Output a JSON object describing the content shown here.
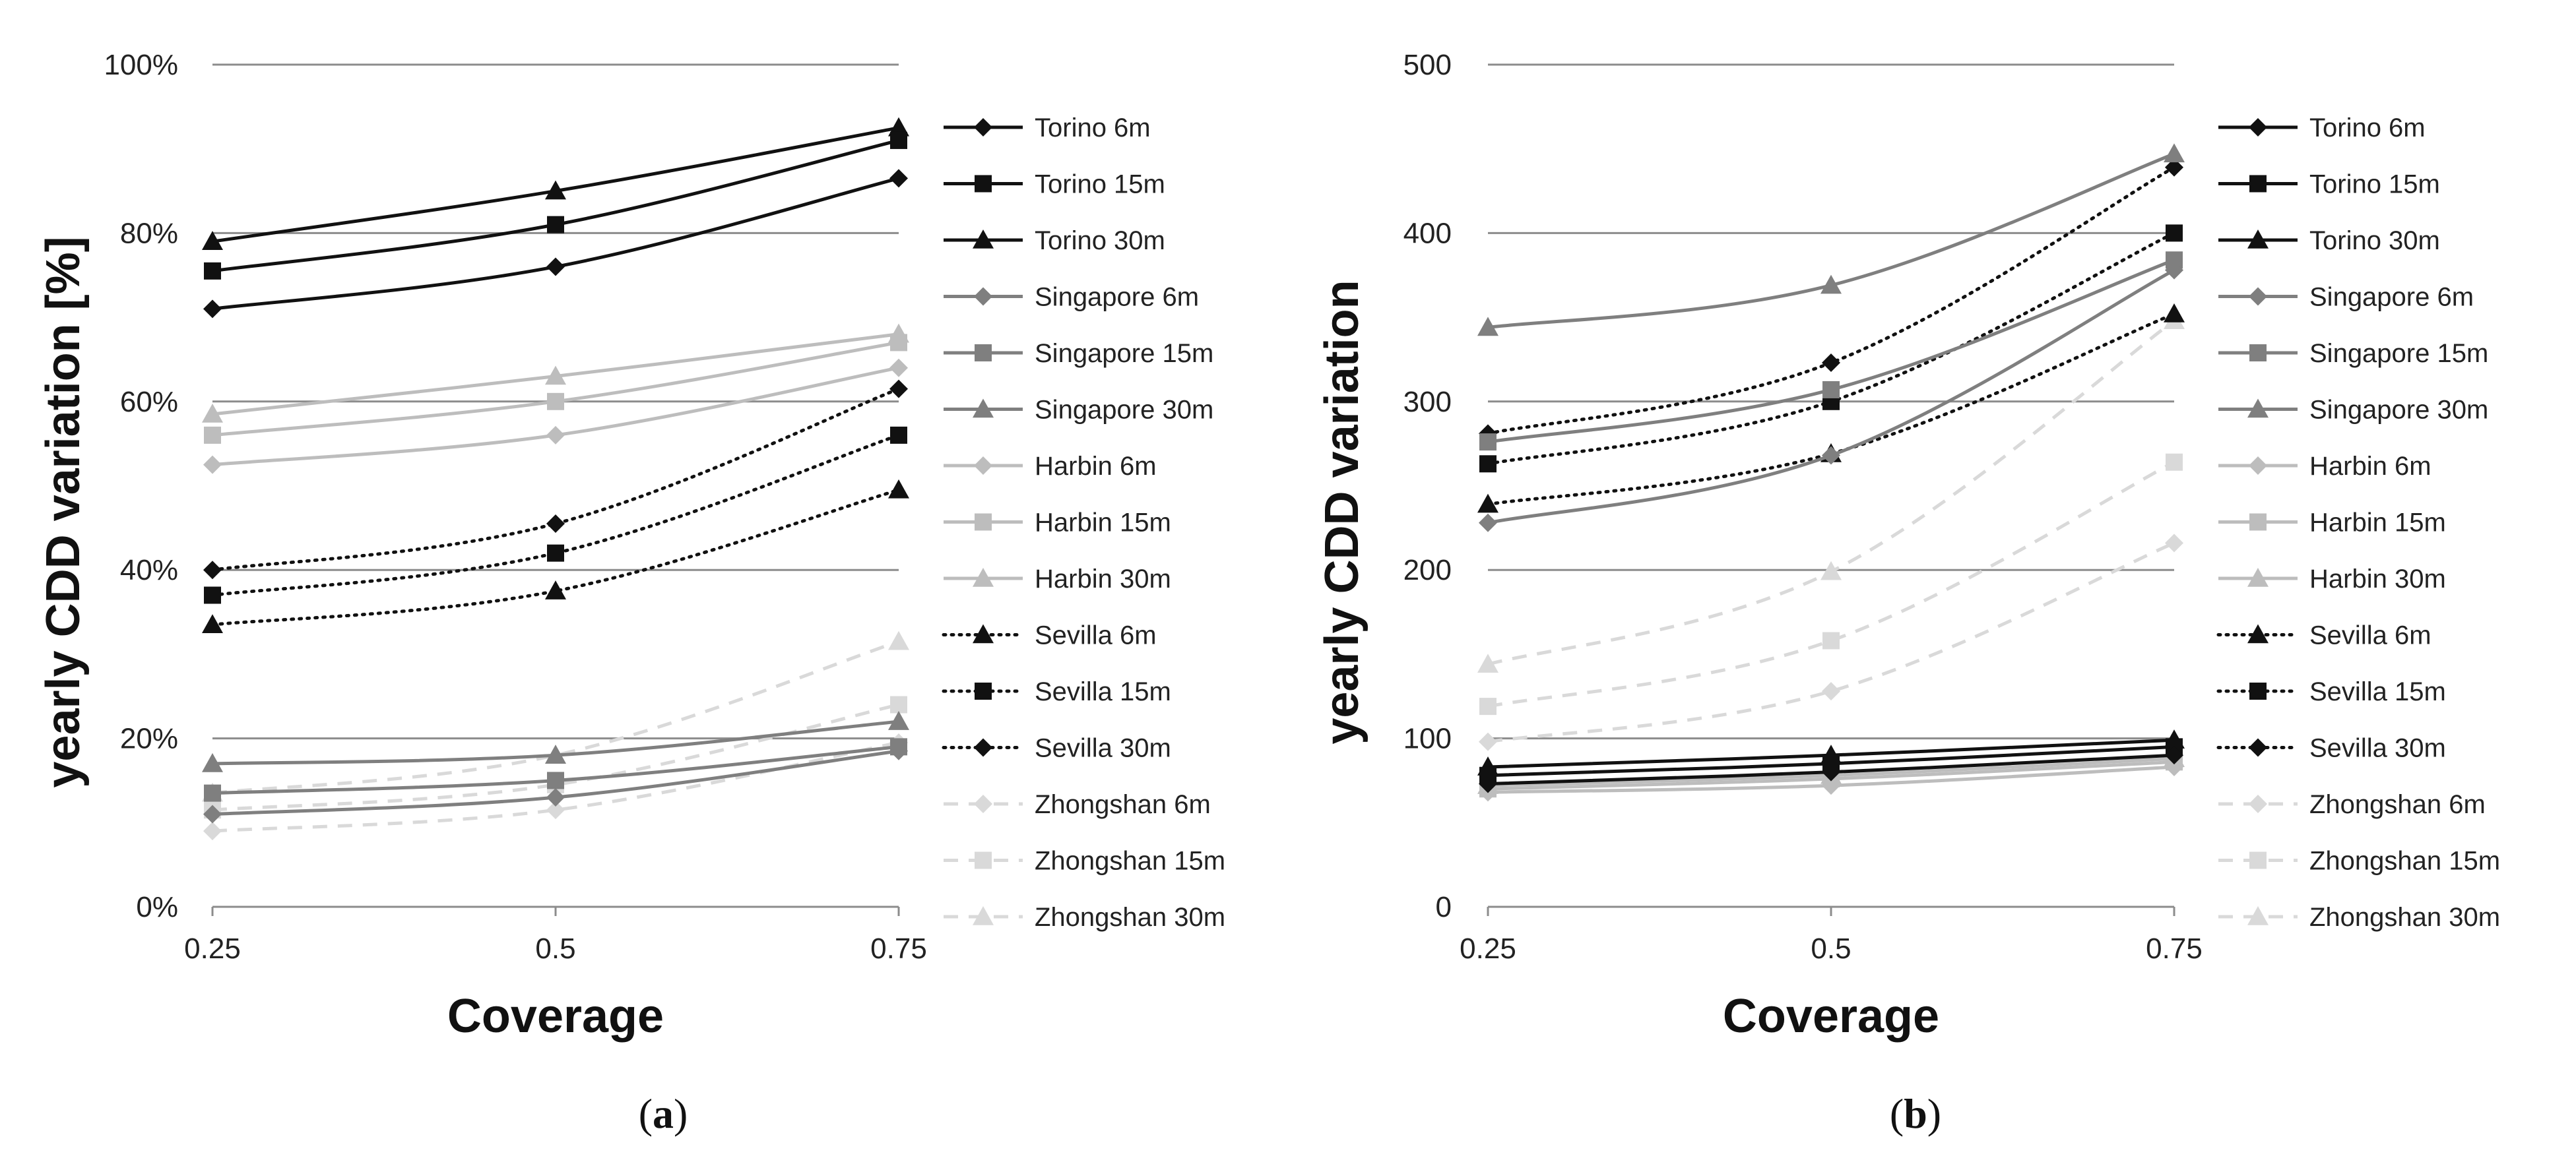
{
  "figure": {
    "caption_a": "a",
    "caption_b": "b"
  },
  "chart_data": [
    {
      "id": "a",
      "type": "line",
      "title": "",
      "xlabel": "Coverage",
      "ylabel": "yearly CDD variation [%]",
      "x": [
        0.25,
        0.5,
        0.75
      ],
      "x_tick_labels": [
        "0.25",
        "0.5",
        "0.75"
      ],
      "ylim": [
        0,
        100
      ],
      "y_ticks": [
        0,
        20,
        40,
        60,
        80,
        100
      ],
      "y_tick_labels": [
        "0%",
        "20%",
        "40%",
        "60%",
        "80%",
        "100%"
      ],
      "grid": true,
      "legend_position": "right",
      "series": [
        {
          "name": "Torino 6m",
          "values": [
            71,
            76,
            86.5
          ],
          "color": "#111111",
          "dash": "solid",
          "marker": "diamond"
        },
        {
          "name": "Torino 15m",
          "values": [
            75.5,
            81,
            91
          ],
          "color": "#111111",
          "dash": "solid",
          "marker": "square"
        },
        {
          "name": "Torino 30m",
          "values": [
            79,
            85,
            92.5
          ],
          "color": "#111111",
          "dash": "solid",
          "marker": "triangle"
        },
        {
          "name": "Singapore 6m",
          "values": [
            11,
            13,
            18.5
          ],
          "color": "#7f7f7f",
          "dash": "solid",
          "marker": "diamond"
        },
        {
          "name": "Singapore 15m",
          "values": [
            13.5,
            15,
            19
          ],
          "color": "#7f7f7f",
          "dash": "solid",
          "marker": "square"
        },
        {
          "name": "Singapore 30m",
          "values": [
            17,
            18,
            22
          ],
          "color": "#7f7f7f",
          "dash": "solid",
          "marker": "triangle"
        },
        {
          "name": "Harbin 6m",
          "values": [
            52.5,
            56,
            64
          ],
          "color": "#bdbdbd",
          "dash": "solid",
          "marker": "diamond"
        },
        {
          "name": "Harbin 15m",
          "values": [
            56,
            60,
            67
          ],
          "color": "#bdbdbd",
          "dash": "solid",
          "marker": "square"
        },
        {
          "name": "Harbin 30m",
          "values": [
            58.5,
            63,
            68
          ],
          "color": "#bdbdbd",
          "dash": "solid",
          "marker": "triangle"
        },
        {
          "name": "Sevilla 6m",
          "values": [
            33.5,
            37.5,
            49.5
          ],
          "color": "#111111",
          "dash": "dotted",
          "marker": "triangle"
        },
        {
          "name": "Sevilla 15m",
          "values": [
            37,
            42,
            56
          ],
          "color": "#111111",
          "dash": "dotted",
          "marker": "square"
        },
        {
          "name": "Sevilla 30m",
          "values": [
            40,
            45.5,
            61.5
          ],
          "color": "#111111",
          "dash": "dotted",
          "marker": "diamond"
        },
        {
          "name": "Zhongshan 6m",
          "values": [
            9,
            11.5,
            19.5
          ],
          "color": "#d9d9d9",
          "dash": "dashed",
          "marker": "diamond"
        },
        {
          "name": "Zhongshan 15m",
          "values": [
            11.5,
            14.5,
            24
          ],
          "color": "#d9d9d9",
          "dash": "dashed",
          "marker": "square"
        },
        {
          "name": "Zhongshan 30m",
          "values": [
            13.5,
            18,
            31.5
          ],
          "color": "#d9d9d9",
          "dash": "dashed",
          "marker": "triangle"
        }
      ]
    },
    {
      "id": "b",
      "type": "line",
      "title": "",
      "xlabel": "Coverage",
      "ylabel": "yearly CDD variation",
      "x": [
        0.25,
        0.5,
        0.75
      ],
      "x_tick_labels": [
        "0.25",
        "0.5",
        "0.75"
      ],
      "ylim": [
        0,
        500
      ],
      "y_ticks": [
        0,
        100,
        200,
        300,
        400,
        500
      ],
      "y_tick_labels": [
        "0",
        "100",
        "200",
        "300",
        "400",
        "500"
      ],
      "grid": true,
      "legend_position": "right",
      "series": [
        {
          "name": "Torino 6m",
          "values": [
            73,
            80,
            90
          ],
          "color": "#111111",
          "dash": "solid",
          "marker": "diamond"
        },
        {
          "name": "Torino 15m",
          "values": [
            78,
            85,
            95
          ],
          "color": "#111111",
          "dash": "solid",
          "marker": "square"
        },
        {
          "name": "Torino 30m",
          "values": [
            83,
            90,
            99
          ],
          "color": "#111111",
          "dash": "solid",
          "marker": "triangle"
        },
        {
          "name": "Singapore 6m",
          "values": [
            228,
            268,
            378
          ],
          "color": "#7f7f7f",
          "dash": "solid",
          "marker": "diamond"
        },
        {
          "name": "Singapore 15m",
          "values": [
            276,
            307,
            384
          ],
          "color": "#7f7f7f",
          "dash": "solid",
          "marker": "square"
        },
        {
          "name": "Singapore 30m",
          "values": [
            344,
            369,
            447
          ],
          "color": "#7f7f7f",
          "dash": "solid",
          "marker": "triangle"
        },
        {
          "name": "Harbin 6m",
          "values": [
            68,
            72,
            83
          ],
          "color": "#bdbdbd",
          "dash": "solid",
          "marker": "diamond"
        },
        {
          "name": "Harbin 15m",
          "values": [
            70,
            76,
            86
          ],
          "color": "#bdbdbd",
          "dash": "solid",
          "marker": "square"
        },
        {
          "name": "Harbin 30m",
          "values": [
            72,
            78,
            88
          ],
          "color": "#bdbdbd",
          "dash": "solid",
          "marker": "triangle"
        },
        {
          "name": "Sevilla 6m",
          "values": [
            239,
            269,
            352
          ],
          "color": "#111111",
          "dash": "dotted",
          "marker": "triangle"
        },
        {
          "name": "Sevilla 15m",
          "values": [
            263,
            300,
            400
          ],
          "color": "#111111",
          "dash": "dotted",
          "marker": "square"
        },
        {
          "name": "Sevilla 30m",
          "values": [
            281,
            323,
            439
          ],
          "color": "#111111",
          "dash": "dotted",
          "marker": "diamond"
        },
        {
          "name": "Zhongshan 6m",
          "values": [
            98,
            128,
            216
          ],
          "color": "#d9d9d9",
          "dash": "dashed",
          "marker": "diamond"
        },
        {
          "name": "Zhongshan 15m",
          "values": [
            119,
            158,
            264
          ],
          "color": "#d9d9d9",
          "dash": "dashed",
          "marker": "square"
        },
        {
          "name": "Zhongshan 30m",
          "values": [
            144,
            199,
            348
          ],
          "color": "#d9d9d9",
          "dash": "dashed",
          "marker": "triangle"
        }
      ]
    }
  ]
}
